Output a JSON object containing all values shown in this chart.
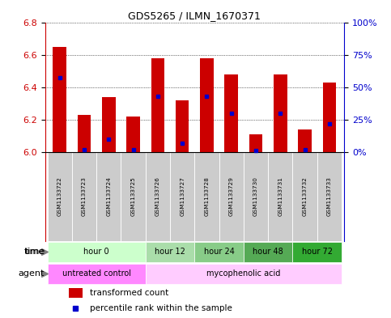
{
  "title": "GDS5265 / ILMN_1670371",
  "samples": [
    "GSM1133722",
    "GSM1133723",
    "GSM1133724",
    "GSM1133725",
    "GSM1133726",
    "GSM1133727",
    "GSM1133728",
    "GSM1133729",
    "GSM1133730",
    "GSM1133731",
    "GSM1133732",
    "GSM1133733"
  ],
  "transformed_count": [
    6.65,
    6.23,
    6.34,
    6.22,
    6.58,
    6.32,
    6.58,
    6.48,
    6.11,
    6.48,
    6.14,
    6.43
  ],
  "percentile_rank": [
    57,
    2,
    10,
    2,
    43,
    7,
    43,
    30,
    1,
    30,
    2,
    22
  ],
  "y_min": 6.0,
  "y_max": 6.8,
  "y_ticks": [
    6.0,
    6.2,
    6.4,
    6.6,
    6.8
  ],
  "right_y_ticks": [
    0,
    25,
    50,
    75,
    100
  ],
  "right_y_labels": [
    "0%",
    "25%",
    "50%",
    "75%",
    "100%"
  ],
  "bar_color": "#cc0000",
  "percentile_color": "#0000cc",
  "time_groups": [
    {
      "label": "hour 0",
      "start": 0,
      "end": 3,
      "color": "#ccffcc"
    },
    {
      "label": "hour 12",
      "start": 4,
      "end": 5,
      "color": "#aaddaa"
    },
    {
      "label": "hour 24",
      "start": 6,
      "end": 7,
      "color": "#88cc88"
    },
    {
      "label": "hour 48",
      "start": 8,
      "end": 9,
      "color": "#55aa55"
    },
    {
      "label": "hour 72",
      "start": 10,
      "end": 11,
      "color": "#33aa33"
    }
  ],
  "agent_groups": [
    {
      "label": "untreated control",
      "start": 0,
      "end": 3,
      "color": "#ff88ff"
    },
    {
      "label": "mycophenolic acid",
      "start": 4,
      "end": 11,
      "color": "#ffccff"
    }
  ],
  "legend_items": [
    {
      "label": "transformed count",
      "color": "#cc0000"
    },
    {
      "label": "percentile rank within the sample",
      "color": "#0000cc"
    }
  ],
  "left_axis_color": "#cc0000",
  "right_axis_color": "#0000cc",
  "grid_color": "#000000",
  "bg_color": "#ffffff",
  "sample_bg_color": "#cccccc"
}
